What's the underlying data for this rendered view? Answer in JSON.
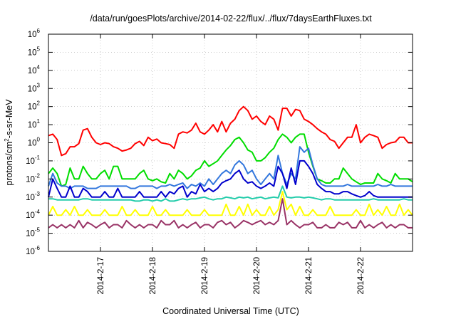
{
  "chart_data": {
    "type": "line",
    "title": "/data/run/goesPlots/archive/2014-02-22/flux/../flux/7daysEarthFluxes.txt",
    "xlabel": "Coordinated Universal Time (UTC)",
    "ylabel": {
      "pre": "protons/cm",
      "sup": "2",
      "post": "-s-sr-MeV"
    },
    "yscale": "log",
    "ylim": [
      1e-06,
      1000000.0
    ],
    "y_ticks": [
      {
        "exp": "-6",
        "value": 1e-06
      },
      {
        "exp": "-5",
        "value": 1e-05
      },
      {
        "exp": "-4",
        "value": 0.0001
      },
      {
        "exp": "-3",
        "value": 0.001
      },
      {
        "exp": "-2",
        "value": 0.01
      },
      {
        "exp": "-1",
        "value": 0.1
      },
      {
        "exp": "0",
        "value": 1
      },
      {
        "exp": "1",
        "value": 10.0
      },
      {
        "exp": "2",
        "value": 100.0
      },
      {
        "exp": "3",
        "value": 1000.0
      },
      {
        "exp": "4",
        "value": 10000.0
      },
      {
        "exp": "5",
        "value": 100000.0
      },
      {
        "exp": "6",
        "value": 1000000.0
      }
    ],
    "y_tick_base": "10",
    "xlim": [
      "2014-02-16 00:00",
      "2014-02-23 00:00"
    ],
    "x_ticks": [
      "2014-2-17",
      "2014-2-18",
      "2014-2-19",
      "2014-2-20",
      "2014-2-21",
      "2014-2-22"
    ],
    "grid": true,
    "x": [
      "2014-02-16 00:00",
      "2014-02-16 02:00",
      "2014-02-16 04:00",
      "2014-02-16 06:00",
      "2014-02-16 08:00",
      "2014-02-16 10:00",
      "2014-02-16 12:00",
      "2014-02-16 14:00",
      "2014-02-16 16:00",
      "2014-02-16 18:00",
      "2014-02-16 20:00",
      "2014-02-16 22:00",
      "2014-02-17 00:00",
      "2014-02-17 02:00",
      "2014-02-17 04:00",
      "2014-02-17 06:00",
      "2014-02-17 08:00",
      "2014-02-17 10:00",
      "2014-02-17 12:00",
      "2014-02-17 14:00",
      "2014-02-17 16:00",
      "2014-02-17 18:00",
      "2014-02-17 20:00",
      "2014-02-17 22:00",
      "2014-02-18 00:00",
      "2014-02-18 02:00",
      "2014-02-18 04:00",
      "2014-02-18 06:00",
      "2014-02-18 08:00",
      "2014-02-18 10:00",
      "2014-02-18 12:00",
      "2014-02-18 14:00",
      "2014-02-18 16:00",
      "2014-02-18 18:00",
      "2014-02-18 20:00",
      "2014-02-18 22:00",
      "2014-02-19 00:00",
      "2014-02-19 02:00",
      "2014-02-19 04:00",
      "2014-02-19 06:00",
      "2014-02-19 08:00",
      "2014-02-19 10:00",
      "2014-02-19 12:00",
      "2014-02-19 14:00",
      "2014-02-19 16:00",
      "2014-02-19 18:00",
      "2014-02-19 20:00",
      "2014-02-19 22:00",
      "2014-02-20 00:00",
      "2014-02-20 02:00",
      "2014-02-20 04:00",
      "2014-02-20 06:00",
      "2014-02-20 08:00",
      "2014-02-20 10:00",
      "2014-02-20 12:00",
      "2014-02-20 14:00",
      "2014-02-20 16:00",
      "2014-02-20 18:00",
      "2014-02-20 20:00",
      "2014-02-20 22:00",
      "2014-02-21 00:00",
      "2014-02-21 02:00",
      "2014-02-21 04:00",
      "2014-02-21 06:00",
      "2014-02-21 08:00",
      "2014-02-21 10:00",
      "2014-02-21 12:00",
      "2014-02-21 14:00",
      "2014-02-21 16:00",
      "2014-02-21 18:00",
      "2014-02-21 20:00",
      "2014-02-21 22:00",
      "2014-02-22 00:00",
      "2014-02-22 02:00",
      "2014-02-22 04:00",
      "2014-02-22 06:00",
      "2014-02-22 08:00",
      "2014-02-22 10:00",
      "2014-02-22 12:00",
      "2014-02-22 14:00",
      "2014-02-22 16:00",
      "2014-02-22 18:00",
      "2014-02-22 20:00",
      "2014-02-22 22:00",
      "2014-02-23 00:00"
    ],
    "series": [
      {
        "color": "#ff0000",
        "values": [
          2.5,
          3,
          1.5,
          0.2,
          0.25,
          0.6,
          0.6,
          0.9,
          5,
          6,
          2,
          1,
          0.8,
          1,
          0.9,
          0.6,
          0.5,
          0.35,
          0.4,
          0.5,
          0.9,
          1.2,
          0.7,
          2,
          1.3,
          1.6,
          1,
          0.9,
          0.8,
          0.5,
          3,
          4,
          3.5,
          5,
          12,
          4,
          3,
          5,
          10,
          4,
          15,
          4,
          12,
          20,
          60,
          100,
          60,
          20,
          30,
          15,
          10,
          30,
          20,
          5,
          80,
          80,
          30,
          70,
          60,
          20,
          15,
          10,
          6,
          4,
          3,
          1.5,
          1.2,
          0.5,
          1,
          2,
          2,
          10,
          1,
          2,
          3,
          2.5,
          2,
          0.5,
          0.8,
          1,
          1.1,
          2,
          2,
          1,
          1
        ]
      },
      {
        "color": "#00dd00",
        "values": [
          0.02,
          0.04,
          0.02,
          0.004,
          0.005,
          0.04,
          0.01,
          0.01,
          0.05,
          0.02,
          0.01,
          0.01,
          0.02,
          0.03,
          0.01,
          0.05,
          0.05,
          0.01,
          0.01,
          0.01,
          0.01,
          0.02,
          0.03,
          0.01,
          0.008,
          0.01,
          0.007,
          0.006,
          0.02,
          0.01,
          0.03,
          0.02,
          0.01,
          0.015,
          0.03,
          0.04,
          0.1,
          0.05,
          0.07,
          0.1,
          0.2,
          0.4,
          0.7,
          1.5,
          2,
          1,
          0.4,
          0.3,
          0.1,
          0.1,
          0.15,
          0.3,
          0.5,
          1.5,
          3,
          2,
          1,
          2,
          3,
          3,
          0.3,
          0.05,
          0.01,
          0.008,
          0.006,
          0.006,
          0.01,
          0.01,
          0.04,
          0.02,
          0.01,
          0.007,
          0.005,
          0.006,
          0.006,
          0.006,
          0.02,
          0.01,
          0.008,
          0.006,
          0.02,
          0.01,
          0.01,
          0.01,
          0.007
        ]
      },
      {
        "color": "#3377dd",
        "values": [
          0.004,
          0.02,
          0.006,
          0.004,
          0.004,
          0.003,
          0.004,
          0.004,
          0.004,
          0.003,
          0.003,
          0.003,
          0.004,
          0.004,
          0.004,
          0.004,
          0.004,
          0.004,
          0.004,
          0.003,
          0.003,
          0.004,
          0.004,
          0.004,
          0.004,
          0.003,
          0.004,
          0.004,
          0.005,
          0.004,
          0.005,
          0.006,
          0.003,
          0.005,
          0.004,
          0.006,
          0.004,
          0.01,
          0.005,
          0.01,
          0.02,
          0.03,
          0.02,
          0.06,
          0.1,
          0.06,
          0.02,
          0.03,
          0.01,
          0.005,
          0.01,
          0.02,
          0.01,
          0.2,
          0.02,
          0.005,
          0.02,
          0.01,
          0.6,
          0.3,
          0.5,
          0.06,
          0.01,
          0.005,
          0.004,
          0.004,
          0.004,
          0.004,
          0.004,
          0.005,
          0.004,
          0.004,
          0.004,
          0.004,
          0.004,
          0.004,
          0.005,
          0.004,
          0.004,
          0.005,
          0.004,
          0.004,
          0.004,
          0.004,
          0.004
        ]
      },
      {
        "color": "#0000cc",
        "values": [
          0.001,
          0.01,
          0.003,
          0.001,
          0.001,
          0.004,
          0.001,
          0.001,
          0.003,
          0.002,
          0.001,
          0.001,
          0.001,
          0.002,
          0.001,
          0.001,
          0.003,
          0.001,
          0.001,
          0.001,
          0.001,
          0.002,
          0.001,
          0.001,
          0.001,
          0.001,
          0.002,
          0.001,
          0.002,
          0.0015,
          0.003,
          0.004,
          0.001,
          0.002,
          0.0015,
          0.005,
          0.002,
          0.003,
          0.002,
          0.003,
          0.006,
          0.008,
          0.01,
          0.02,
          0.03,
          0.01,
          0.006,
          0.007,
          0.004,
          0.003,
          0.004,
          0.006,
          0.004,
          0.05,
          0.02,
          0.003,
          0.04,
          0.005,
          0.1,
          0.1,
          0.05,
          0.02,
          0.005,
          0.003,
          0.002,
          0.002,
          0.0015,
          0.0015,
          0.002,
          0.002,
          0.0015,
          0.0012,
          0.001,
          0.0012,
          0.002,
          0.0012,
          0.001,
          0.001,
          0.001,
          0.001,
          0.001,
          0.001,
          0.001,
          0.001,
          0.001
        ]
      },
      {
        "color": "#22ccaa",
        "values": [
          0.0008,
          0.0008,
          0.0007,
          0.0007,
          0.0007,
          0.0007,
          0.0007,
          0.0007,
          0.0008,
          0.0008,
          0.0007,
          0.0007,
          0.0007,
          0.0007,
          0.0007,
          0.0007,
          0.0007,
          0.0007,
          0.0007,
          0.0007,
          0.0006,
          0.0006,
          0.0007,
          0.0007,
          0.0006,
          0.0007,
          0.0006,
          0.0008,
          0.0006,
          0.0006,
          0.0007,
          0.0008,
          0.0007,
          0.0008,
          0.0008,
          0.0009,
          0.001,
          0.0008,
          0.0007,
          0.0008,
          0.0008,
          0.001,
          0.0009,
          0.0008,
          0.001,
          0.0009,
          0.001,
          0.0008,
          0.0009,
          0.001,
          0.0008,
          0.0009,
          0.001,
          0.0009,
          0.004,
          0.001,
          0.0009,
          0.001,
          0.001,
          0.0009,
          0.001,
          0.0009,
          0.0008,
          0.0007,
          0.0008,
          0.0008,
          0.0007,
          0.0007,
          0.0007,
          0.0007,
          0.0007,
          0.0007,
          0.0007,
          0.0007,
          0.0007,
          0.0008,
          0.0007,
          0.0007,
          0.0007,
          0.0007,
          0.0007,
          0.0007,
          0.0008,
          0.0007,
          0.0007
        ]
      },
      {
        "color": "#ffff00",
        "values": [
          0.0001,
          0.0003,
          0.0001,
          0.0001,
          0.0002,
          0.0001,
          0.0003,
          0.0001,
          0.0001,
          0.0002,
          0.0001,
          0.0001,
          0.0001,
          0.0002,
          0.0001,
          0.0001,
          0.0001,
          0.0003,
          0.0001,
          0.0001,
          0.0002,
          0.0001,
          0.0001,
          0.0001,
          0.0003,
          0.0001,
          0.0001,
          0.0002,
          0.0001,
          0.0001,
          0.0001,
          0.0001,
          0.0002,
          0.0001,
          0.0001,
          0.0001,
          0.0002,
          0.0001,
          0.0001,
          0.0001,
          0.0001,
          0.0004,
          0.0001,
          0.0001,
          0.0003,
          0.0001,
          0.0004,
          0.0001,
          0.0002,
          0.0001,
          0.0001,
          0.0003,
          0.0001,
          0.0002,
          0.002,
          0.0002,
          0.0004,
          0.0001,
          0.0003,
          0.0001,
          0.0001,
          0.0002,
          0.0001,
          0.0001,
          0.0001,
          0.0003,
          0.0001,
          0.0001,
          0.0001,
          0.0001,
          0.0001,
          0.0002,
          0.0001,
          0.0001,
          0.0004,
          0.0001,
          0.0002,
          0.0001,
          0.0003,
          0.0001,
          0.0001,
          0.0004,
          0.0001,
          0.0002,
          0.0001
        ]
      },
      {
        "color": "#993366",
        "values": [
          2e-05,
          3e-05,
          2e-05,
          3e-05,
          2e-05,
          3e-05,
          2e-05,
          5e-05,
          2e-05,
          4e-05,
          3e-05,
          2e-05,
          3e-05,
          4e-05,
          2e-05,
          3e-05,
          3e-05,
          2e-05,
          5e-05,
          3e-05,
          2e-05,
          3e-05,
          2e-05,
          3e-05,
          3e-05,
          2e-05,
          5e-05,
          3e-05,
          3e-05,
          5e-05,
          2e-05,
          3e-05,
          2e-05,
          3e-05,
          4e-05,
          2e-05,
          3e-05,
          3e-05,
          2e-05,
          4e-05,
          5e-05,
          3e-05,
          4e-05,
          2e-05,
          3e-05,
          5e-05,
          4e-05,
          3e-05,
          4e-05,
          5e-05,
          3e-05,
          4e-05,
          3e-05,
          5e-05,
          0.0008,
          3e-05,
          5e-05,
          3e-05,
          2e-05,
          3e-05,
          3e-05,
          4e-05,
          2e-05,
          2e-05,
          3e-05,
          2e-05,
          2e-05,
          4e-05,
          3e-05,
          4e-05,
          2e-05,
          2e-05,
          5e-05,
          2e-05,
          3e-05,
          2e-05,
          3e-05,
          4e-05,
          2e-05,
          3e-05,
          2e-05,
          3e-05,
          3e-05,
          2e-05,
          2e-05
        ]
      }
    ]
  }
}
